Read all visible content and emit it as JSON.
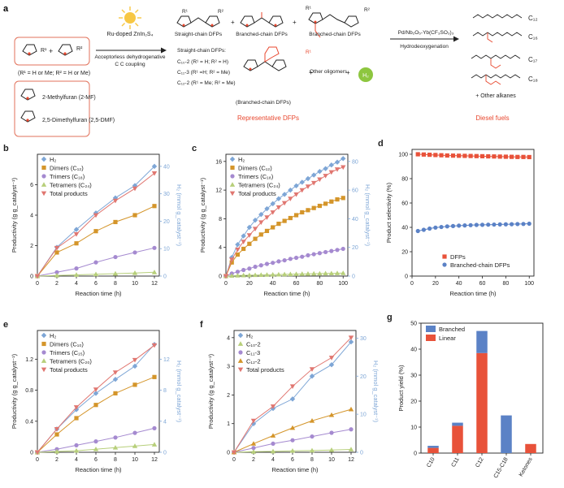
{
  "colors": {
    "h2": "#7ea6d6",
    "dimers": "#d4952a",
    "trimers": "#a58ad0",
    "tetramers": "#b7cf7a",
    "total": "#e07670",
    "red_text": "#e8472e",
    "linear": "#e8523a",
    "branched": "#5b82c6",
    "catalyst_box": "#e2725b",
    "sun": "#f7c744",
    "h2_bubble": "#8dc63f"
  },
  "scheme": {
    "panel_label": "a",
    "reactant_note": "(R¹ = H or Me; R² = H or Me)",
    "mf_label": "2-Methylfuran (2-MF)",
    "dmf_label": "2,5-Dimethylfuran (2,5-DMF)",
    "catalyst": "Ru-doped ZnIn₂S₄",
    "step1_line1": "Acceptorless dehydrogenative",
    "step1_line2": "C  C coupling",
    "straight_label": "Straight-chain DFPs",
    "branched_label": "Branched-chain DFPs",
    "branched_label2": "Branched-chain DFPs",
    "straight_list_title": "Straight-chain DFPs:",
    "straight_list_1": "C₁₀-2 (R¹ = H; R² = H)",
    "straight_list_2": "C₁₁-3 (R¹ =H; R² = Me)",
    "straight_list_3": "C₁₂-2 (R¹ = Me; R² = Me)",
    "branched_label3": "(Branched-chain DFPs)",
    "other_oligomers": "Other oligomers",
    "plus": "+",
    "h2": "H₂",
    "representative": "Representative DFPs",
    "hdo_catalyst": "Pd/Nb₂O₅-Yb(CF₃SO₃)₃",
    "hdo_label": "Hydrodeoxygenation",
    "c12": "C₁₂",
    "c16": "C₁₆",
    "c17": "C₁₇",
    "c18": "C₁₈",
    "other_alkanes": "+ Other alkanes",
    "diesel": "Diesel fuels",
    "r1": "R¹",
    "r2": "R²"
  },
  "chart_data": [
    {
      "panel": "b",
      "type": "line",
      "xlabel": "Reaction time (h)",
      "ylabel": "Productivity (g g_catalyst⁻¹)",
      "y2label": "H₂ (mmol g_catalyst⁻¹)",
      "xlim": [
        0,
        12.5
      ],
      "xticks": [
        0,
        2,
        4,
        6,
        8,
        10,
        12
      ],
      "ylim": [
        0,
        8
      ],
      "yticks": [
        0,
        2,
        4,
        6
      ],
      "y2lim": [
        0,
        44.4
      ],
      "y2ticks": [
        0,
        10,
        20,
        30,
        40
      ],
      "legend": [
        "H₂",
        "Dimers (C₁₂)",
        "Trimers (C₁₈)",
        "Tetramers (C₂₄)",
        "Total products"
      ],
      "series": [
        {
          "name": "H₂",
          "axis": "right",
          "marker": "diamond",
          "x": [
            0,
            2,
            4,
            6,
            8,
            10,
            12
          ],
          "y": [
            0,
            10.5,
            17,
            23,
            28.5,
            33,
            40
          ]
        },
        {
          "name": "Dimers (C₁₂)",
          "axis": "left",
          "marker": "square",
          "x": [
            0,
            2,
            4,
            6,
            8,
            10,
            12
          ],
          "y": [
            0,
            1.55,
            2.15,
            2.95,
            3.55,
            4.0,
            4.6
          ]
        },
        {
          "name": "Trimers (C₁₈)",
          "axis": "left",
          "marker": "circle",
          "x": [
            0,
            2,
            4,
            6,
            8,
            10,
            12
          ],
          "y": [
            0,
            0.25,
            0.5,
            0.9,
            1.25,
            1.55,
            1.85
          ]
        },
        {
          "name": "Tetramers (C₂₄)",
          "axis": "left",
          "marker": "triangle",
          "x": [
            0,
            2,
            4,
            6,
            8,
            10,
            12
          ],
          "y": [
            0,
            0.04,
            0.08,
            0.12,
            0.16,
            0.2,
            0.25
          ]
        },
        {
          "name": "Total products",
          "axis": "left",
          "marker": "tri-down",
          "x": [
            0,
            2,
            4,
            6,
            8,
            10,
            12
          ],
          "y": [
            0,
            1.85,
            2.75,
            4.0,
            4.95,
            5.75,
            6.75
          ]
        }
      ]
    },
    {
      "panel": "c",
      "type": "line",
      "xlabel": "Reaction time (h)",
      "ylabel": "Productivity (g g_catalyst⁻¹)",
      "y2label": "H₂ (mmol g_catalyst⁻¹)",
      "xlim": [
        0,
        104
      ],
      "xticks": [
        0,
        20,
        40,
        60,
        80,
        100
      ],
      "ylim": [
        0,
        17
      ],
      "yticks": [
        0,
        4,
        8,
        12,
        16
      ],
      "y2lim": [
        0,
        85
      ],
      "y2ticks": [
        0,
        20,
        40,
        60,
        80
      ],
      "legend": [
        "H₂",
        "Dimers (C₁₂)",
        "Trimers (C₁₈)",
        "Tetramers (C₂₄)",
        "Total products"
      ],
      "series": [
        {
          "name": "H₂",
          "axis": "right",
          "marker": "diamond",
          "x": [
            0,
            5,
            10,
            15,
            20,
            25,
            30,
            35,
            40,
            45,
            50,
            55,
            60,
            65,
            70,
            75,
            80,
            85,
            90,
            95,
            100
          ],
          "y": [
            0,
            13,
            22,
            28,
            34,
            39,
            43,
            47,
            50.5,
            54,
            57,
            60,
            63,
            65.5,
            68,
            70.5,
            73,
            75,
            77.5,
            79.5,
            82
          ]
        },
        {
          "name": "Dimers (C₁₂)",
          "axis": "left",
          "marker": "square",
          "x": [
            0,
            5,
            10,
            15,
            20,
            25,
            30,
            35,
            40,
            45,
            50,
            55,
            60,
            65,
            70,
            75,
            80,
            85,
            90,
            95,
            100
          ],
          "y": [
            0,
            1.9,
            3.0,
            3.8,
            4.5,
            5.2,
            5.8,
            6.3,
            6.8,
            7.3,
            7.7,
            8.1,
            8.5,
            8.9,
            9.2,
            9.5,
            9.8,
            10.1,
            10.4,
            10.7,
            10.9
          ]
        },
        {
          "name": "Trimers (C₁₈)",
          "axis": "left",
          "marker": "circle",
          "x": [
            0,
            5,
            10,
            15,
            20,
            25,
            30,
            35,
            40,
            45,
            50,
            55,
            60,
            65,
            70,
            75,
            80,
            85,
            90,
            95,
            100
          ],
          "y": [
            0,
            0.35,
            0.6,
            0.85,
            1.05,
            1.3,
            1.5,
            1.7,
            1.85,
            2.05,
            2.2,
            2.4,
            2.55,
            2.7,
            2.9,
            3.05,
            3.2,
            3.35,
            3.5,
            3.65,
            3.8
          ]
        },
        {
          "name": "Tetramers (C₂₄)",
          "axis": "left",
          "marker": "triangle",
          "x": [
            0,
            5,
            10,
            15,
            20,
            25,
            30,
            35,
            40,
            45,
            50,
            55,
            60,
            65,
            70,
            75,
            80,
            85,
            90,
            95,
            100
          ],
          "y": [
            0,
            0.05,
            0.08,
            0.1,
            0.12,
            0.14,
            0.16,
            0.18,
            0.2,
            0.22,
            0.24,
            0.26,
            0.28,
            0.3,
            0.32,
            0.34,
            0.35,
            0.37,
            0.38,
            0.4,
            0.42
          ]
        },
        {
          "name": "Total products",
          "axis": "left",
          "marker": "tri-down",
          "x": [
            0,
            5,
            10,
            15,
            20,
            25,
            30,
            35,
            40,
            45,
            50,
            55,
            60,
            65,
            70,
            75,
            80,
            85,
            90,
            95,
            100
          ],
          "y": [
            0,
            2.3,
            3.7,
            4.8,
            5.7,
            6.6,
            7.5,
            8.2,
            8.9,
            9.6,
            10.2,
            10.8,
            11.4,
            12.0,
            12.5,
            13.0,
            13.5,
            14.0,
            14.5,
            14.9,
            15.2
          ]
        }
      ]
    },
    {
      "panel": "d",
      "type": "line",
      "xlabel": "Reaction time (h)",
      "ylabel": "Product selectivity (%)",
      "xlim": [
        0,
        104
      ],
      "xticks": [
        0,
        20,
        40,
        60,
        80,
        100
      ],
      "ylim": [
        0,
        104
      ],
      "yticks": [
        0,
        20,
        40,
        60,
        80,
        100
      ],
      "legend": [
        "DFPs",
        "Branched-chain DFPs"
      ],
      "series": [
        {
          "name": "DFPs",
          "marker": "square",
          "x": [
            5,
            10,
            15,
            20,
            25,
            30,
            35,
            40,
            45,
            50,
            55,
            60,
            65,
            70,
            75,
            80,
            85,
            90,
            95,
            100
          ],
          "y": [
            100,
            99.8,
            99.6,
            99.4,
            99.2,
            99,
            98.9,
            98.8,
            98.7,
            98.6,
            98.5,
            98.4,
            98.3,
            98.2,
            98.1,
            98,
            97.9,
            97.8,
            97.8,
            97.7
          ]
        },
        {
          "name": "Branched-chain DFPs",
          "marker": "circle",
          "x": [
            5,
            10,
            15,
            20,
            25,
            30,
            35,
            40,
            45,
            50,
            55,
            60,
            65,
            70,
            75,
            80,
            85,
            90,
            95,
            100
          ],
          "y": [
            37,
            38,
            39,
            39.8,
            40.3,
            40.8,
            41.1,
            41.4,
            41.6,
            41.8,
            42,
            42.1,
            42.2,
            42.3,
            42.4,
            42.5,
            42.6,
            42.7,
            42.8,
            43
          ]
        }
      ]
    },
    {
      "panel": "e",
      "type": "line",
      "xlabel": "Reaction time (h)",
      "ylabel": "Productivity (g g_catalyst⁻¹)",
      "y2label": "H₂ (mmol g_catalyst⁻¹)",
      "xlim": [
        0,
        12.5
      ],
      "xticks": [
        0,
        2,
        4,
        6,
        8,
        10,
        12
      ],
      "ylim": [
        0,
        1.57
      ],
      "yticks": [
        0,
        0.4,
        0.8,
        1.2
      ],
      "y2lim": [
        0,
        15.7
      ],
      "y2ticks": [
        0,
        4,
        8,
        12
      ],
      "legend": [
        "H₂",
        "Dimers (C₁₀)",
        "Trimers (C₁₅)",
        "Tetramers (C₂₀)",
        "Total products"
      ],
      "series": [
        {
          "name": "H₂",
          "axis": "right",
          "marker": "diamond",
          "x": [
            0,
            2,
            4,
            6,
            8,
            10,
            12
          ],
          "y": [
            0,
            3.0,
            5.5,
            7.6,
            9.4,
            11.1,
            13.9
          ]
        },
        {
          "name": "Dimers (C₁₀)",
          "axis": "left",
          "marker": "square",
          "x": [
            0,
            2,
            4,
            6,
            8,
            10,
            12
          ],
          "y": [
            0,
            0.23,
            0.44,
            0.61,
            0.76,
            0.87,
            0.97
          ]
        },
        {
          "name": "Trimers (C₁₅)",
          "axis": "left",
          "marker": "circle",
          "x": [
            0,
            2,
            4,
            6,
            8,
            10,
            12
          ],
          "y": [
            0,
            0.04,
            0.09,
            0.14,
            0.19,
            0.25,
            0.31
          ]
        },
        {
          "name": "Tetramers (C₂₀)",
          "axis": "left",
          "marker": "triangle",
          "x": [
            0,
            2,
            4,
            6,
            8,
            10,
            12
          ],
          "y": [
            0,
            0.01,
            0.02,
            0.04,
            0.06,
            0.08,
            0.1
          ]
        },
        {
          "name": "Total products",
          "axis": "left",
          "marker": "tri-down",
          "x": [
            0,
            2,
            4,
            6,
            8,
            10,
            12
          ],
          "y": [
            0,
            0.3,
            0.58,
            0.81,
            1.03,
            1.19,
            1.38
          ]
        }
      ]
    },
    {
      "panel": "f",
      "type": "line",
      "xlabel": "Reaction time (h)",
      "ylabel": "Productivity (g g_catalyst⁻¹)",
      "y2label": "H₂ (mmol g_catalyst⁻¹)",
      "xlim": [
        0,
        12.5
      ],
      "xticks": [
        0,
        2,
        4,
        6,
        8,
        10,
        12
      ],
      "ylim": [
        0,
        4.25
      ],
      "yticks": [
        0,
        1,
        2,
        3,
        4
      ],
      "y2lim": [
        0,
        32
      ],
      "y2ticks": [
        0,
        10,
        20,
        30
      ],
      "legend": [
        "H₂",
        "C₁₀-2",
        "C₁₁-3",
        "C₁₂-2",
        "Total products"
      ],
      "series": [
        {
          "name": "H₂",
          "axis": "right",
          "marker": "diamond",
          "x": [
            0,
            2,
            4,
            6,
            8,
            10,
            12
          ],
          "y": [
            0,
            7.5,
            11.5,
            14,
            20,
            23,
            29
          ]
        },
        {
          "name": "C₁₀-2",
          "axis": "left",
          "marker": "triangle",
          "x": [
            0,
            2,
            4,
            6,
            8,
            10,
            12
          ],
          "y": [
            0,
            0.02,
            0.03,
            0.05,
            0.06,
            0.08,
            0.1
          ]
        },
        {
          "name": "C₁₁-3",
          "axis": "left",
          "marker": "circle",
          "x": [
            0,
            2,
            4,
            6,
            8,
            10,
            12
          ],
          "y": [
            0,
            0.15,
            0.3,
            0.42,
            0.55,
            0.68,
            0.8
          ]
        },
        {
          "name": "C₁₂-2",
          "axis": "left",
          "marker": "triangle",
          "x": [
            0,
            2,
            4,
            6,
            8,
            10,
            12
          ],
          "y": [
            0,
            0.3,
            0.58,
            0.85,
            1.1,
            1.3,
            1.5
          ]
        },
        {
          "name": "Total products",
          "axis": "left",
          "marker": "tri-down",
          "x": [
            0,
            2,
            4,
            6,
            8,
            10,
            12
          ],
          "y": [
            0,
            1.1,
            1.6,
            2.3,
            2.9,
            3.3,
            4.0
          ]
        }
      ]
    },
    {
      "panel": "g",
      "type": "bar",
      "stacked": true,
      "ylabel": "Product yield (%)",
      "ylim": [
        0,
        50
      ],
      "yticks": [
        0,
        10,
        20,
        30,
        40,
        50
      ],
      "categories": [
        "C10",
        "C11",
        "C12",
        "C15-C18",
        "Ketones"
      ],
      "legend": [
        "Branched",
        "Linear"
      ],
      "series": [
        {
          "name": "Linear",
          "values": [
            2,
            10.5,
            38.5,
            0,
            3.5
          ]
        },
        {
          "name": "Branched",
          "values": [
            0.8,
            1.2,
            8.5,
            14.5,
            0
          ]
        }
      ]
    }
  ]
}
